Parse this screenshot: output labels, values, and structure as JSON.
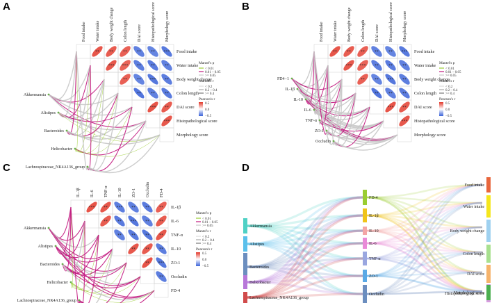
{
  "panels": [
    "A",
    "B",
    "C",
    "D"
  ],
  "chart_data": [
    {
      "type": "heatmap",
      "panel": "A",
      "columns": [
        "Food intake",
        "Water intake",
        "Body weight change",
        "Colon length",
        "DAI score",
        "Histopathological score",
        "Morphology score"
      ],
      "matrix": [
        [
          1,
          0.85,
          0.82,
          0.8,
          -0.8,
          -0.78,
          -0.85
        ],
        [
          0.85,
          1,
          0.84,
          0.78,
          -0.82,
          -0.84,
          -0.8
        ],
        [
          0.82,
          0.84,
          1,
          0.8,
          -0.78,
          -0.86,
          -0.82
        ],
        [
          0.8,
          0.78,
          0.8,
          1,
          -0.88,
          -0.8,
          -0.84
        ],
        [
          -0.8,
          -0.82,
          -0.78,
          -0.88,
          1,
          0.86,
          0.82
        ],
        [
          -0.78,
          -0.84,
          -0.86,
          -0.8,
          0.86,
          1,
          0.84
        ],
        [
          -0.85,
          -0.8,
          -0.82,
          -0.84,
          0.82,
          0.84,
          1
        ]
      ],
      "stars": [
        [
          "",
          "**",
          "**",
          "**",
          "**",
          "**",
          "***"
        ],
        [
          "",
          "",
          "***",
          "***",
          "**",
          "**",
          "**"
        ],
        [
          "",
          "",
          "",
          "**",
          "**",
          "***",
          "**"
        ],
        [
          "",
          "",
          "",
          "",
          "**",
          "**",
          "**"
        ],
        [
          "",
          "",
          "",
          "",
          "",
          "***",
          "**"
        ],
        [
          "",
          "",
          "",
          "",
          "",
          "",
          "***"
        ],
        [
          "",
          "",
          "",
          "",
          "",
          "",
          ""
        ]
      ],
      "taxa": [
        "Akkermansia",
        "Alistipes",
        "Bacteroides",
        "Helicobacter",
        "Lachnospiraceae_NK4A136_group"
      ],
      "mantel": [
        [
          2,
          2,
          1,
          2,
          2,
          1,
          2
        ],
        [
          2,
          1,
          2,
          2,
          1,
          2,
          0
        ],
        [
          1,
          2,
          2,
          1,
          2,
          2,
          2
        ],
        [
          0,
          0,
          0,
          0,
          0,
          1,
          0
        ],
        [
          2,
          1,
          2,
          2,
          1,
          2,
          2
        ]
      ]
    },
    {
      "type": "heatmap",
      "panel": "B",
      "columns": [
        "Food intake",
        "Water intake",
        "Body weight change",
        "Colon length",
        "DAI score",
        "Histopathological score",
        "Morphology score"
      ],
      "matrix": [
        [
          1,
          0.85,
          0.82,
          0.8,
          -0.8,
          -0.78,
          -0.85
        ],
        [
          0.85,
          1,
          0.84,
          0.78,
          -0.82,
          -0.84,
          -0.8
        ],
        [
          0.82,
          0.84,
          1,
          0.8,
          -0.78,
          -0.86,
          -0.82
        ],
        [
          0.8,
          0.78,
          0.8,
          1,
          -0.88,
          -0.8,
          -0.84
        ],
        [
          -0.8,
          -0.82,
          -0.78,
          -0.88,
          1,
          0.86,
          0.82
        ],
        [
          -0.78,
          -0.84,
          -0.86,
          -0.8,
          0.86,
          1,
          0.84
        ],
        [
          -0.85,
          -0.8,
          -0.82,
          -0.84,
          0.82,
          0.84,
          1
        ]
      ],
      "stars": [
        [
          "",
          "**",
          "**",
          "**",
          "**",
          "**",
          "***"
        ],
        [
          "",
          "",
          "***",
          "***",
          "**",
          "**",
          "**"
        ],
        [
          "",
          "",
          "",
          "**",
          "**",
          "***",
          "**"
        ],
        [
          "",
          "",
          "",
          "",
          "**",
          "**",
          "**"
        ],
        [
          "",
          "",
          "",
          "",
          "",
          "***",
          "**"
        ],
        [
          "",
          "",
          "",
          "",
          "",
          "",
          "***"
        ],
        [
          "",
          "",
          "",
          "",
          "",
          "",
          ""
        ]
      ],
      "taxa": [
        "FD4−1",
        "IL-1β",
        "IL-10",
        "IL-6",
        "TNF-α",
        "ZO-1",
        "Occludin"
      ],
      "mantel": [
        [
          2,
          2,
          1,
          2,
          2,
          2,
          1
        ],
        [
          2,
          2,
          2,
          1,
          2,
          2,
          2
        ],
        [
          1,
          1,
          2,
          2,
          1,
          2,
          1
        ],
        [
          2,
          2,
          1,
          2,
          2,
          2,
          2
        ],
        [
          2,
          1,
          2,
          2,
          2,
          1,
          2
        ],
        [
          1,
          2,
          2,
          1,
          2,
          2,
          2
        ],
        [
          2,
          2,
          2,
          2,
          1,
          2,
          2
        ]
      ]
    },
    {
      "type": "heatmap",
      "panel": "C",
      "columns": [
        "IL-1β",
        "IL-6",
        "TNF-α",
        "IL-10",
        "ZO-1",
        "Occludin",
        "FD-4"
      ],
      "matrix": [
        [
          1,
          0.86,
          0.84,
          -0.82,
          -0.8,
          -0.84,
          0.8
        ],
        [
          0.86,
          1,
          0.82,
          -0.84,
          -0.86,
          -0.8,
          0.82
        ],
        [
          0.84,
          0.82,
          1,
          -0.8,
          -0.84,
          -0.86,
          0.84
        ],
        [
          -0.82,
          -0.84,
          -0.8,
          1,
          0.84,
          0.82,
          -0.82
        ],
        [
          -0.8,
          -0.86,
          -0.84,
          0.84,
          1,
          0.86,
          -0.86
        ],
        [
          -0.84,
          -0.8,
          -0.86,
          0.82,
          0.86,
          1,
          -0.82
        ],
        [
          0.8,
          0.82,
          0.84,
          -0.82,
          -0.86,
          -0.82,
          1
        ]
      ],
      "stars": [
        [
          "",
          "***",
          "**",
          "***",
          "**",
          "**",
          "**"
        ],
        [
          "",
          "",
          "**",
          "**",
          "***",
          "**",
          "**"
        ],
        [
          "",
          "",
          "",
          "**",
          "**",
          "**",
          "**"
        ],
        [
          "",
          "",
          "",
          "",
          "**",
          "**",
          "**"
        ],
        [
          "",
          "",
          "",
          "",
          "",
          "**",
          "***"
        ],
        [
          "",
          "",
          "",
          "",
          "",
          "",
          "**"
        ],
        [
          "",
          "",
          "",
          "",
          "",
          "",
          ""
        ]
      ],
      "taxa": [
        "Akkermansia",
        "Alistipes",
        "Bacteroides",
        "Helicobacter",
        "Lachnospiraceae_NK4A136_group"
      ],
      "mantel": [
        [
          1,
          1,
          2,
          1,
          1,
          2,
          1
        ],
        [
          1,
          1,
          1,
          1,
          2,
          1,
          1
        ],
        [
          1,
          2,
          1,
          1,
          1,
          1,
          2
        ],
        [
          0,
          0,
          0,
          0,
          0,
          0,
          0
        ],
        [
          1,
          1,
          1,
          2,
          1,
          1,
          1
        ]
      ]
    },
    {
      "type": "sankey",
      "panel": "D",
      "left": [
        "Akkermansia",
        "Alistipes",
        "Bacteroides",
        "Helicobacter",
        "Lachnospiraceae_NK4A136_group"
      ],
      "middle": [
        "FD-4",
        "IL-1β",
        "IL-10",
        "IL-6",
        "TNF-α",
        "ZO-1",
        "Occludin"
      ],
      "right": [
        "Food intake",
        "Water intake",
        "Body weight change",
        "Colon length",
        "DAI score",
        "Histopathological score",
        "Morphology score"
      ]
    }
  ],
  "legend": {
    "mantel_p_title": "Mantel's p",
    "mantel_p": [
      "< 0.01",
      "0.01 – 0.05",
      ">= 0.05"
    ],
    "mantel_r_title": "Mantel's r",
    "mantel_r": [
      "< 0.2",
      "0.2 – 0.4",
      ">= 0.4"
    ],
    "pearson_title": "Pearson's r",
    "pearson_ticks": [
      "0.5",
      "0.0",
      "−0.5"
    ]
  },
  "colors": {
    "pos": "#e3382a",
    "neg": "#3a62d8",
    "p_low": "#9acd32",
    "p_mid": "#c2187f",
    "p_high": "#c8c8c8",
    "left_nodes": [
      "#4fd1c5",
      "#5bc0eb",
      "#6c8ebf",
      "#b877d9",
      "#d14b4b"
    ],
    "mid_nodes": [
      "#9acd32",
      "#f0c419",
      "#f4a6a6",
      "#e98ad8",
      "#9aa7e0",
      "#5aa9e6",
      "#6c8ebf"
    ],
    "right_nodes": [
      "#e8663c",
      "#f5e61c",
      "#9fd1f0",
      "#a8e08f",
      "#f6b36b",
      "#d89be0",
      "#4caf50"
    ]
  }
}
